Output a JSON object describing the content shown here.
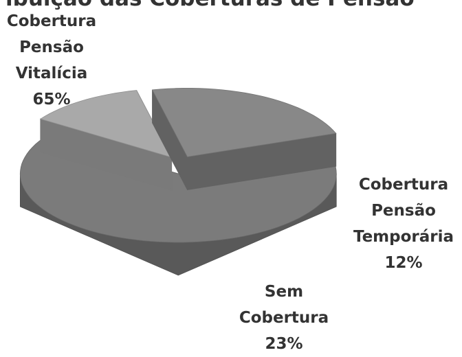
{
  "chart_data": {
    "type": "pie3d",
    "title": "ibuição das Coberturas de Pensão",
    "categories": [
      "Cobertura Pensão Vitalícia",
      "Cobertura Pensão Temporária",
      "Sem Cobertura"
    ],
    "values": [
      65,
      12,
      23
    ],
    "value_labels": [
      "65%",
      "12%",
      "23%"
    ],
    "colors": [
      "#7b7b7b",
      "#a9a9a9",
      "#888888"
    ]
  }
}
